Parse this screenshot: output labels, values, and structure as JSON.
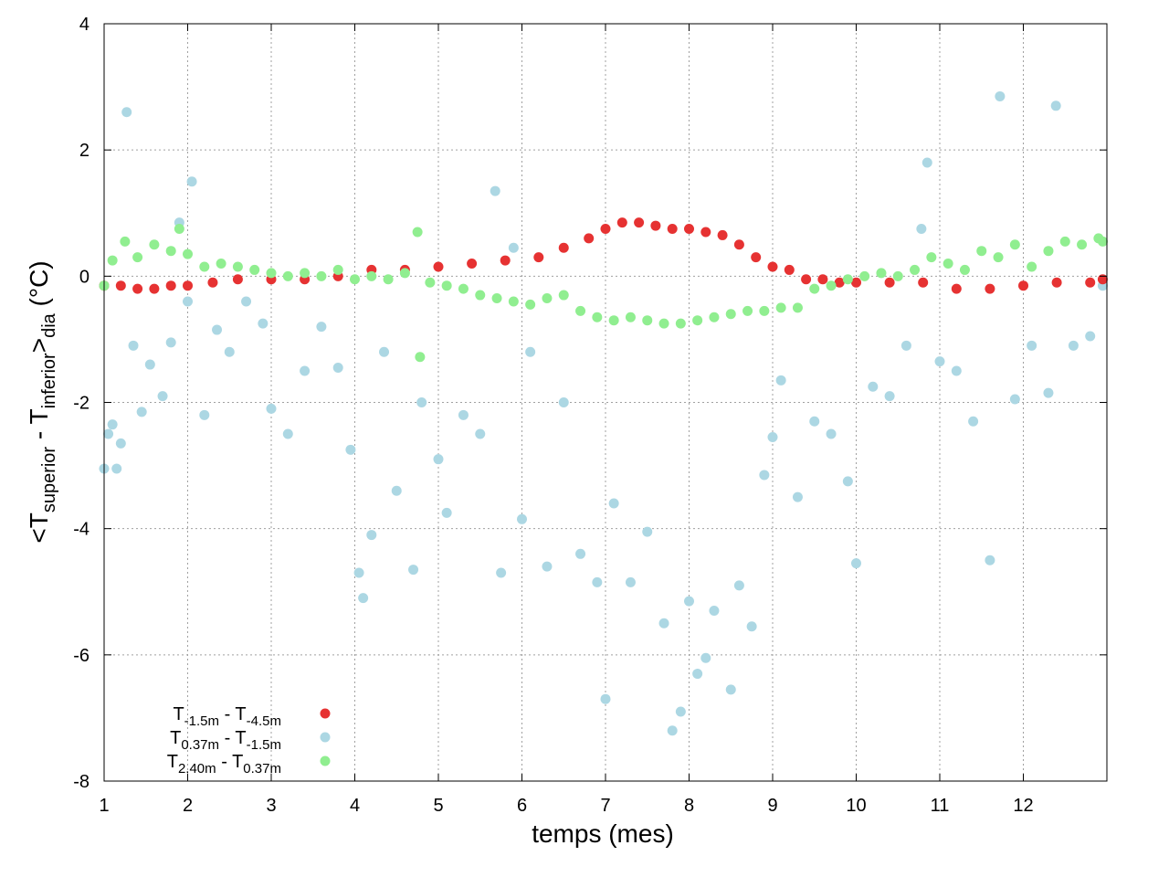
{
  "chart_data": {
    "type": "scatter",
    "xlabel": "temps (mes)",
    "ylabel": {
      "parts": [
        "<T",
        "superior",
        " - T",
        "inferior",
        ">",
        "dia",
        " (°C)"
      ]
    },
    "xlim": [
      1,
      13
    ],
    "ylim": [
      -8,
      4
    ],
    "x_ticks": [
      "1",
      "2",
      "3",
      "4",
      "5",
      "6",
      "7",
      "8",
      "9",
      "10",
      "11",
      "12"
    ],
    "y_ticks": [
      "-8",
      "-6",
      "-4",
      "-2",
      "0",
      "2",
      "4"
    ],
    "x_tick_values": [
      1,
      2,
      3,
      4,
      5,
      6,
      7,
      8,
      9,
      10,
      11,
      12
    ],
    "y_tick_values": [
      -8,
      -6,
      -4,
      -2,
      0,
      2,
      4
    ],
    "grid": true,
    "legend_position": "bottom-left",
    "series": [
      {
        "label_parts": [
          "T",
          "-1.5m",
          " - T",
          "-4.5m"
        ],
        "color": "#e63232",
        "points": [
          [
            1.0,
            -0.15
          ],
          [
            1.2,
            -0.15
          ],
          [
            1.4,
            -0.2
          ],
          [
            1.6,
            -0.2
          ],
          [
            1.8,
            -0.15
          ],
          [
            2.0,
            -0.15
          ],
          [
            2.3,
            -0.1
          ],
          [
            2.6,
            -0.05
          ],
          [
            3.0,
            -0.05
          ],
          [
            3.4,
            -0.05
          ],
          [
            3.8,
            0.0
          ],
          [
            4.2,
            0.1
          ],
          [
            4.6,
            0.1
          ],
          [
            5.0,
            0.15
          ],
          [
            5.4,
            0.2
          ],
          [
            5.8,
            0.25
          ],
          [
            6.2,
            0.3
          ],
          [
            6.5,
            0.45
          ],
          [
            6.8,
            0.6
          ],
          [
            7.0,
            0.75
          ],
          [
            7.2,
            0.85
          ],
          [
            7.4,
            0.85
          ],
          [
            7.6,
            0.8
          ],
          [
            7.8,
            0.75
          ],
          [
            8.0,
            0.75
          ],
          [
            8.2,
            0.7
          ],
          [
            8.4,
            0.65
          ],
          [
            8.6,
            0.5
          ],
          [
            8.8,
            0.3
          ],
          [
            9.0,
            0.15
          ],
          [
            9.2,
            0.1
          ],
          [
            9.4,
            -0.05
          ],
          [
            9.6,
            -0.05
          ],
          [
            9.8,
            -0.1
          ],
          [
            10.0,
            -0.1
          ],
          [
            10.4,
            -0.1
          ],
          [
            10.8,
            -0.1
          ],
          [
            11.2,
            -0.2
          ],
          [
            11.6,
            -0.2
          ],
          [
            12.0,
            -0.15
          ],
          [
            12.4,
            -0.1
          ],
          [
            12.8,
            -0.1
          ],
          [
            12.95,
            -0.05
          ]
        ]
      },
      {
        "label_parts": [
          "T",
          "0.37m",
          " - T",
          "-1.5m"
        ],
        "color": "#acd7e3",
        "points": [
          [
            1.0,
            -3.05
          ],
          [
            1.05,
            -2.5
          ],
          [
            1.1,
            -2.35
          ],
          [
            1.15,
            -3.05
          ],
          [
            1.2,
            -2.65
          ],
          [
            1.27,
            2.6
          ],
          [
            1.35,
            -1.1
          ],
          [
            1.45,
            -2.15
          ],
          [
            1.55,
            -1.4
          ],
          [
            1.7,
            -1.9
          ],
          [
            1.8,
            -1.05
          ],
          [
            1.9,
            0.85
          ],
          [
            2.0,
            -0.4
          ],
          [
            2.05,
            1.5
          ],
          [
            2.2,
            -2.2
          ],
          [
            2.35,
            -0.85
          ],
          [
            2.5,
            -1.2
          ],
          [
            2.7,
            -0.4
          ],
          [
            2.9,
            -0.75
          ],
          [
            3.0,
            -2.1
          ],
          [
            3.2,
            -2.5
          ],
          [
            3.4,
            -1.5
          ],
          [
            3.6,
            -0.8
          ],
          [
            3.8,
            -1.45
          ],
          [
            3.95,
            -2.75
          ],
          [
            4.05,
            -4.7
          ],
          [
            4.1,
            -5.1
          ],
          [
            4.2,
            -4.1
          ],
          [
            4.35,
            -1.2
          ],
          [
            4.5,
            -3.4
          ],
          [
            4.7,
            -4.65
          ],
          [
            4.8,
            -2.0
          ],
          [
            5.0,
            -2.9
          ],
          [
            5.1,
            -3.75
          ],
          [
            5.3,
            -2.2
          ],
          [
            5.5,
            -2.5
          ],
          [
            5.68,
            1.35
          ],
          [
            5.75,
            -4.7
          ],
          [
            5.9,
            0.45
          ],
          [
            6.0,
            -3.85
          ],
          [
            6.1,
            -1.2
          ],
          [
            6.3,
            -4.6
          ],
          [
            6.5,
            -2.0
          ],
          [
            6.7,
            -4.4
          ],
          [
            6.9,
            -4.85
          ],
          [
            7.0,
            -6.7
          ],
          [
            7.1,
            -3.6
          ],
          [
            7.3,
            -4.85
          ],
          [
            7.5,
            -4.05
          ],
          [
            7.7,
            -5.5
          ],
          [
            7.8,
            -7.2
          ],
          [
            7.9,
            -6.9
          ],
          [
            8.0,
            -5.15
          ],
          [
            8.1,
            -6.3
          ],
          [
            8.2,
            -6.05
          ],
          [
            8.3,
            -5.3
          ],
          [
            8.5,
            -6.55
          ],
          [
            8.6,
            -4.9
          ],
          [
            8.75,
            -5.55
          ],
          [
            8.9,
            -3.15
          ],
          [
            9.0,
            -2.55
          ],
          [
            9.1,
            -1.65
          ],
          [
            9.3,
            -3.5
          ],
          [
            9.5,
            -2.3
          ],
          [
            9.7,
            -2.5
          ],
          [
            9.9,
            -3.25
          ],
          [
            10.0,
            -4.55
          ],
          [
            10.2,
            -1.75
          ],
          [
            10.4,
            -1.9
          ],
          [
            10.6,
            -1.1
          ],
          [
            10.78,
            0.75
          ],
          [
            10.85,
            1.8
          ],
          [
            11.0,
            -1.35
          ],
          [
            11.2,
            -1.5
          ],
          [
            11.4,
            -2.3
          ],
          [
            11.6,
            -4.5
          ],
          [
            11.72,
            2.85
          ],
          [
            11.9,
            -1.95
          ],
          [
            12.1,
            -1.1
          ],
          [
            12.3,
            -1.85
          ],
          [
            12.39,
            2.7
          ],
          [
            12.6,
            -1.1
          ],
          [
            12.8,
            -0.95
          ],
          [
            12.95,
            -0.15
          ]
        ]
      },
      {
        "label_parts": [
          "T",
          "2.40m",
          " - T",
          "0.37m"
        ],
        "color": "#90ee90",
        "points": [
          [
            1.0,
            -0.15
          ],
          [
            1.1,
            0.25
          ],
          [
            1.25,
            0.55
          ],
          [
            1.4,
            0.3
          ],
          [
            1.6,
            0.5
          ],
          [
            1.8,
            0.4
          ],
          [
            1.9,
            0.75
          ],
          [
            2.0,
            0.35
          ],
          [
            2.2,
            0.15
          ],
          [
            2.4,
            0.2
          ],
          [
            2.6,
            0.15
          ],
          [
            2.8,
            0.1
          ],
          [
            3.0,
            0.05
          ],
          [
            3.2,
            0.0
          ],
          [
            3.4,
            0.05
          ],
          [
            3.6,
            0.0
          ],
          [
            3.8,
            0.1
          ],
          [
            4.0,
            -0.05
          ],
          [
            4.2,
            0.0
          ],
          [
            4.4,
            -0.05
          ],
          [
            4.6,
            0.05
          ],
          [
            4.75,
            0.7
          ],
          [
            4.78,
            -1.28
          ],
          [
            4.9,
            -0.1
          ],
          [
            5.1,
            -0.15
          ],
          [
            5.3,
            -0.2
          ],
          [
            5.5,
            -0.3
          ],
          [
            5.7,
            -0.35
          ],
          [
            5.9,
            -0.4
          ],
          [
            6.1,
            -0.45
          ],
          [
            6.3,
            -0.35
          ],
          [
            6.5,
            -0.3
          ],
          [
            6.7,
            -0.55
          ],
          [
            6.9,
            -0.65
          ],
          [
            7.1,
            -0.7
          ],
          [
            7.3,
            -0.65
          ],
          [
            7.5,
            -0.7
          ],
          [
            7.7,
            -0.75
          ],
          [
            7.9,
            -0.75
          ],
          [
            8.1,
            -0.7
          ],
          [
            8.3,
            -0.65
          ],
          [
            8.5,
            -0.6
          ],
          [
            8.7,
            -0.55
          ],
          [
            8.9,
            -0.55
          ],
          [
            9.1,
            -0.5
          ],
          [
            9.3,
            -0.5
          ],
          [
            9.5,
            -0.2
          ],
          [
            9.7,
            -0.15
          ],
          [
            9.9,
            -0.05
          ],
          [
            10.1,
            0.0
          ],
          [
            10.3,
            0.05
          ],
          [
            10.5,
            0.0
          ],
          [
            10.7,
            0.1
          ],
          [
            10.9,
            0.3
          ],
          [
            11.1,
            0.2
          ],
          [
            11.3,
            0.1
          ],
          [
            11.5,
            0.4
          ],
          [
            11.7,
            0.3
          ],
          [
            11.9,
            0.5
          ],
          [
            12.1,
            0.15
          ],
          [
            12.3,
            0.4
          ],
          [
            12.5,
            0.55
          ],
          [
            12.7,
            0.5
          ],
          [
            12.9,
            0.6
          ],
          [
            12.95,
            0.55
          ]
        ]
      }
    ]
  }
}
